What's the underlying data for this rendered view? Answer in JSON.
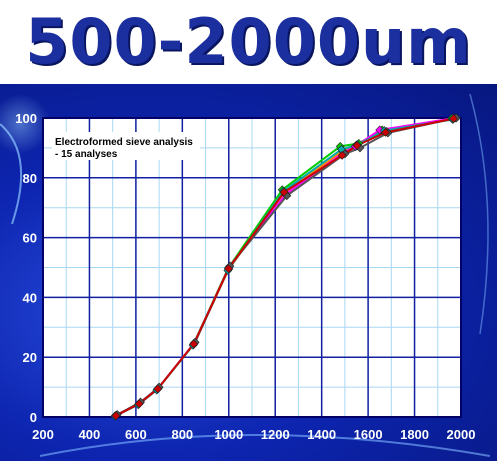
{
  "header": {
    "title": "500-2000um"
  },
  "chart_data": {
    "type": "line",
    "title": "500-2000um",
    "annotation": [
      "Electroformed sieve analysis",
      "- 15 analyses"
    ],
    "xlabel": "",
    "ylabel": "",
    "xlim": [
      200,
      2000
    ],
    "ylim": [
      0,
      100
    ],
    "x_ticks": [
      200,
      400,
      600,
      800,
      1000,
      1200,
      1400,
      1600,
      1800,
      2000
    ],
    "y_ticks": [
      0,
      20,
      40,
      60,
      80,
      100
    ],
    "x_tick_labels": [
      "200",
      "400",
      "600",
      "800",
      "1000",
      "1200",
      "1400",
      "1600",
      "1800",
      "2000"
    ],
    "y_tick_labels": [
      "0",
      "20",
      "40",
      "60",
      "80",
      "100"
    ],
    "grid": true,
    "series": [
      {
        "color": "#ff8c00",
        "x": [
          515,
          615,
          695,
          850,
          1000,
          1240,
          1490,
          1550,
          1680,
          1970
        ],
        "y": [
          0.5,
          4.5,
          9.5,
          24.5,
          49.5,
          75,
          89,
          91,
          95.5,
          100
        ]
      },
      {
        "color": "#00cc00",
        "x": [
          512,
          612,
          692,
          848,
          998,
          1230,
          1480,
          1560,
          1660,
          1960
        ],
        "y": [
          0.5,
          4.3,
          9.2,
          24.2,
          49.8,
          76,
          90.5,
          91.5,
          96,
          99.8
        ]
      },
      {
        "color": "#ff00ff",
        "x": [
          518,
          618,
          698,
          852,
          1002,
          1245,
          1495,
          1545,
          1650,
          1975
        ],
        "y": [
          0.7,
          4.8,
          9.8,
          24.8,
          50.2,
          74.5,
          88.5,
          90.5,
          96,
          100
        ]
      },
      {
        "color": "#00aaaa",
        "x": [
          510,
          610,
          690,
          846,
          996,
          1235,
          1485,
          1555,
          1670,
          1965
        ],
        "y": [
          0.3,
          4.1,
          9.0,
          24.0,
          49.0,
          75.5,
          89.5,
          91,
          95.8,
          99.5
        ]
      },
      {
        "color": "#555555",
        "x": [
          520,
          620,
          700,
          855,
          1005,
          1250,
          1500,
          1565,
          1685,
          1980
        ],
        "y": [
          0.8,
          5.0,
          10.0,
          25.0,
          50.5,
          74,
          88,
          90,
          95,
          100
        ]
      },
      {
        "color": "#cc0000",
        "x": [
          514,
          614,
          694,
          849,
          999,
          1238,
          1488,
          1552,
          1675,
          1968
        ],
        "y": [
          0.4,
          4.4,
          9.4,
          24.4,
          49.6,
          75.2,
          87.5,
          90.8,
          95.2,
          99.8
        ]
      }
    ]
  }
}
